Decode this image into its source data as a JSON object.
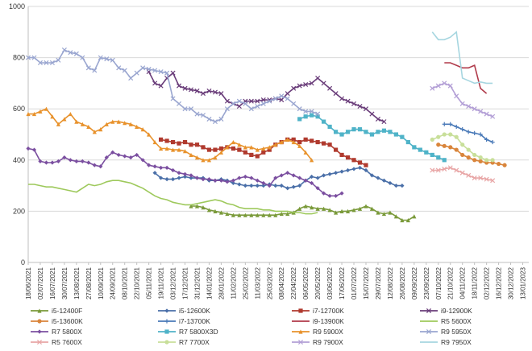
{
  "chart_data": {
    "type": "line",
    "title": "",
    "xlabel": "",
    "ylabel": "",
    "ylim": [
      0,
      1000
    ],
    "yticks": [
      0,
      200,
      400,
      600,
      800,
      1000
    ],
    "grid": true,
    "legend_position": "bottom",
    "x_start": "18/06/2021",
    "x_end": "20/01/2023",
    "x_tick_labels": [
      "18/06/2021",
      "02/07/2021",
      "16/07/2021",
      "30/07/2021",
      "13/08/2021",
      "27/08/2021",
      "10/09/2021",
      "24/09/2021",
      "08/10/2021",
      "22/10/2021",
      "05/11/2021",
      "19/11/2021",
      "03/12/2021",
      "17/12/2021",
      "31/12/2021",
      "14/01/2022",
      "28/01/2022",
      "11/02/2022",
      "25/02/2022",
      "11/03/2022",
      "25/03/2022",
      "08/04/2022",
      "22/04/2022",
      "06/05/2022",
      "20/05/2022",
      "03/06/2022",
      "17/06/2022",
      "01/07/2022",
      "15/07/2022",
      "29/07/2022",
      "12/08/2022",
      "26/08/2022",
      "09/09/2022",
      "23/09/2022",
      "07/10/2022",
      "21/10/2022",
      "04/11/2022",
      "18/11/2022",
      "02/12/2022",
      "16/12/2022",
      "30/12/2022",
      "13/01/2023"
    ],
    "series": [
      {
        "name": "i5-12400F",
        "color": "#7a9a3a",
        "marker": "triangle",
        "start": "24/12/2021",
        "points": [
          220,
          220,
          215,
          205,
          200,
          195,
          190,
          185,
          185,
          185,
          185,
          185,
          185,
          185,
          185,
          190,
          190,
          195,
          210,
          220,
          215,
          210,
          210,
          205,
          195,
          200,
          200,
          205,
          210,
          220,
          210,
          195,
          190,
          195,
          180,
          165,
          165,
          180
        ]
      },
      {
        "name": "i5-12600K",
        "color": "#4a6fa8",
        "marker": "diamond",
        "start": "12/11/2021",
        "points": [
          350,
          330,
          325,
          325,
          330,
          335,
          330,
          330,
          330,
          320,
          320,
          325,
          320,
          310,
          305,
          300,
          300,
          300,
          300,
          305,
          300,
          300,
          290,
          295,
          300,
          320,
          335,
          330,
          340,
          345,
          350,
          355,
          360,
          365,
          370,
          360,
          340,
          330,
          320,
          310,
          300,
          300
        ]
      },
      {
        "name": "i7-12700K",
        "color": "#b03a2e",
        "marker": "square",
        "start": "19/11/2021",
        "points": [
          480,
          475,
          470,
          465,
          470,
          460,
          460,
          450,
          440,
          440,
          445,
          450,
          445,
          440,
          430,
          420,
          415,
          430,
          440,
          460,
          470,
          480,
          480,
          470,
          480,
          475,
          470,
          465,
          460,
          440,
          420,
          410,
          400,
          390,
          380
        ]
      },
      {
        "name": "i9-12900K",
        "color": "#6a3d7a",
        "marker": "x",
        "start": "05/11/2021",
        "points": [
          745,
          700,
          690,
          720,
          740,
          690,
          680,
          675,
          670,
          660,
          670,
          665,
          660,
          630,
          620,
          610,
          630,
          630,
          630,
          635,
          635,
          640,
          635,
          660,
          680,
          690,
          695,
          700,
          720,
          700,
          680,
          660,
          640,
          630,
          620,
          610,
          600,
          580,
          560,
          550
        ]
      },
      {
        "name": "i5-13600K",
        "color": "#d9853b",
        "marker": "circle",
        "start": "07/10/2022",
        "points": [
          460,
          455,
          450,
          440,
          420,
          410,
          400,
          395,
          390,
          390,
          385,
          380
        ]
      },
      {
        "name": "i7-13700K",
        "color": "#4a7ab8",
        "marker": "plus",
        "start": "14/10/2022",
        "points": [
          540,
          540,
          530,
          520,
          510,
          505,
          500,
          480,
          470
        ]
      },
      {
        "name": "i9-13900K",
        "color": "#b03a4a",
        "marker": "none",
        "start": "14/10/2022",
        "points": [
          780,
          780,
          770,
          760,
          760,
          770,
          680,
          660
        ]
      },
      {
        "name": "R5 5600X",
        "color": "#9ec95c",
        "marker": "none",
        "start": "18/06/2021",
        "points": [
          305,
          305,
          300,
          295,
          295,
          290,
          285,
          280,
          275,
          290,
          305,
          300,
          305,
          315,
          320,
          320,
          315,
          310,
          300,
          290,
          275,
          260,
          250,
          245,
          235,
          230,
          225,
          225,
          230,
          235,
          240,
          245,
          240,
          230,
          225,
          215,
          210,
          210,
          210,
          205,
          205,
          200,
          200,
          200,
          195,
          195,
          190,
          190,
          195
        ]
      },
      {
        "name": "R7 5800X",
        "color": "#7b4fa0",
        "marker": "diamond",
        "start": "18/06/2021",
        "points": [
          445,
          440,
          395,
          390,
          390,
          395,
          410,
          400,
          395,
          395,
          390,
          380,
          375,
          410,
          430,
          420,
          415,
          410,
          420,
          400,
          380,
          375,
          370,
          370,
          360,
          350,
          345,
          340,
          330,
          325,
          325,
          320,
          320,
          315,
          320,
          330,
          335,
          330,
          320,
          310,
          300,
          330,
          340,
          350,
          340,
          330,
          320,
          310,
          290,
          270,
          260,
          260,
          270
        ]
      },
      {
        "name": "R7 5800X3D",
        "color": "#4fb3c8",
        "marker": "square",
        "start": "29/04/2022",
        "points": [
          560,
          570,
          575,
          570,
          550,
          530,
          510,
          500,
          510,
          520,
          520,
          510,
          500,
          510,
          515,
          510,
          500,
          490,
          470,
          450,
          440,
          430,
          420,
          410,
          400
        ]
      },
      {
        "name": "R9 5900X",
        "color": "#e8922c",
        "marker": "triangle",
        "start": "18/06/2021",
        "points": [
          580,
          580,
          590,
          600,
          570,
          540,
          560,
          580,
          550,
          540,
          530,
          510,
          520,
          540,
          550,
          550,
          545,
          540,
          530,
          520,
          500,
          470,
          445,
          445,
          440,
          440,
          435,
          420,
          410,
          400,
          400,
          410,
          430,
          450,
          470,
          460,
          450,
          450,
          440,
          445,
          450,
          460,
          470,
          480,
          470,
          455,
          430,
          400
        ]
      },
      {
        "name": "R9 5950X",
        "color": "#9aa6d0",
        "marker": "x",
        "start": "18/06/2021",
        "points": [
          800,
          800,
          780,
          780,
          780,
          790,
          830,
          820,
          815,
          800,
          760,
          750,
          800,
          795,
          790,
          760,
          750,
          720,
          740,
          760,
          755,
          750,
          745,
          740,
          640,
          620,
          600,
          600,
          580,
          575,
          560,
          550,
          560,
          600,
          620,
          630,
          620,
          600,
          610,
          620,
          630,
          640,
          650,
          640,
          620,
          600,
          590,
          590,
          580
        ]
      },
      {
        "name": "R5 7600X",
        "color": "#e8a6a6",
        "marker": "x",
        "start": "30/09/2022",
        "points": [
          360,
          360,
          365,
          370,
          360,
          350,
          340,
          330,
          330,
          325,
          320
        ]
      },
      {
        "name": "R7 7700X",
        "color": "#c8df9a",
        "marker": "circle",
        "start": "30/09/2022",
        "points": [
          480,
          490,
          500,
          500,
          490,
          460,
          440,
          420,
          410,
          400,
          400
        ]
      },
      {
        "name": "R9 7900X",
        "color": "#b39fd6",
        "marker": "x",
        "start": "30/09/2022",
        "points": [
          680,
          690,
          700,
          690,
          650,
          620,
          610,
          600,
          590,
          580,
          570
        ]
      },
      {
        "name": "R9 7950X",
        "color": "#a6d6e0",
        "marker": "none",
        "start": "30/09/2022",
        "points": [
          900,
          870,
          870,
          880,
          900,
          720,
          710,
          700,
          705,
          700,
          700
        ]
      }
    ]
  }
}
